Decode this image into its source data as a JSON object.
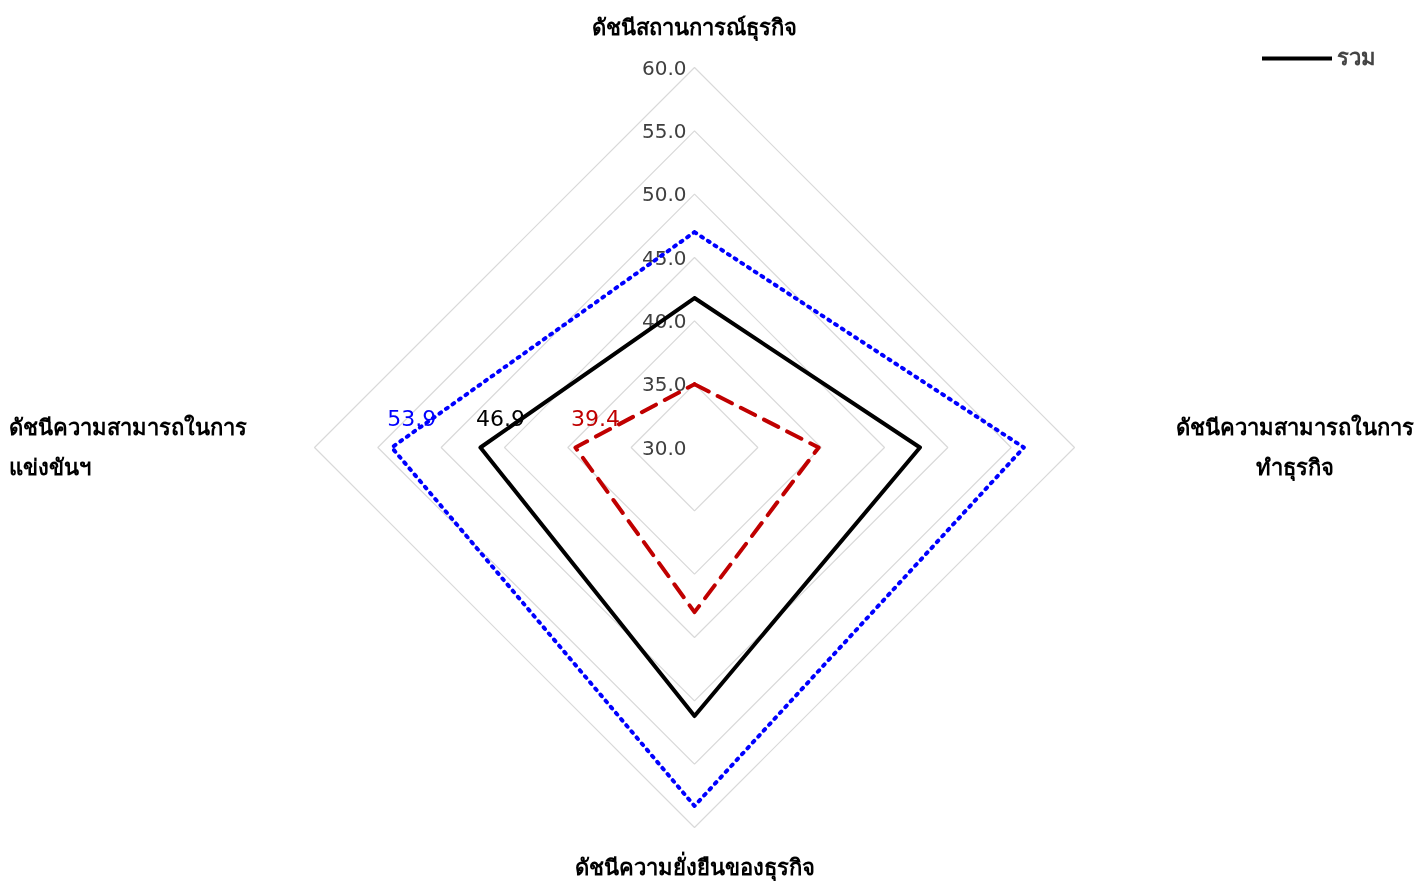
{
  "chart_data": {
    "type": "radar",
    "categories": [
      "ดัชนีสถานการณ์ธุรกิจ",
      "ดัชนีความสามารถในการทำธุรกิจ",
      "ดัชนีความยั่งยืนของธุรกิจ",
      "ดัชนีความสามารถในการแข่งขันฯ"
    ],
    "ylim": [
      30,
      60
    ],
    "yticks": [
      {
        "value": 30,
        "label": "30.0"
      },
      {
        "value": 35,
        "label": "35.0"
      },
      {
        "value": 40,
        "label": "40.0"
      },
      {
        "value": 45,
        "label": "45.0"
      },
      {
        "value": 50,
        "label": "50.0"
      },
      {
        "value": 55,
        "label": "55.0"
      },
      {
        "value": 60,
        "label": "60.0"
      }
    ],
    "grid": true,
    "legend": "top right",
    "marker": "none",
    "series": [
      {
        "color": "#0000ff",
        "line_style": "dotted",
        "values": [
          47.0,
          56.0,
          58.3,
          53.9
        ],
        "value_labels": [
          null,
          null,
          null,
          "53.9"
        ]
      },
      {
        "name": "รวม",
        "color": "#000000",
        "line_style": "solid",
        "values": [
          41.8,
          47.8,
          51.2,
          46.9
        ],
        "value_labels": [
          null,
          null,
          null,
          "46.9"
        ]
      },
      {
        "color": "#c00000",
        "line_style": "dashed",
        "values": [
          35.0,
          39.8,
          43.0,
          39.4
        ],
        "value_labels": [
          null,
          null,
          null,
          "39.4"
        ]
      }
    ]
  }
}
